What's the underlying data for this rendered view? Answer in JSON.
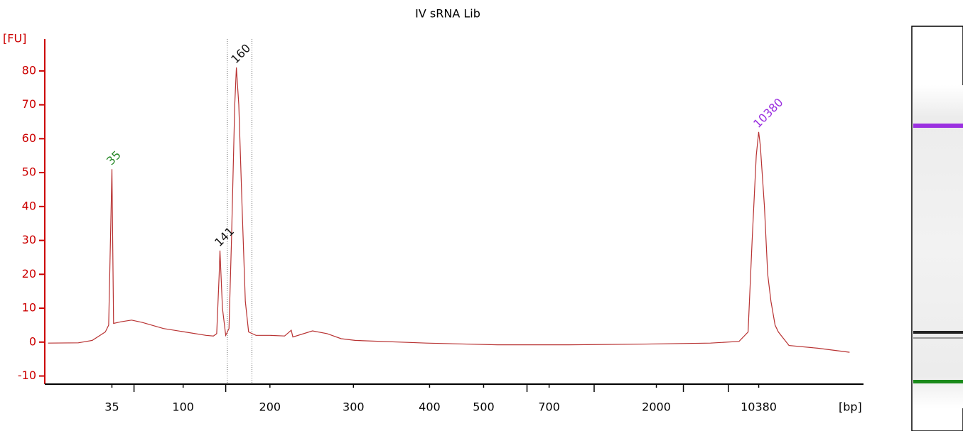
{
  "chart_data": {
    "type": "line",
    "title": "IV sRNA Lib",
    "ylabel": "[FU]",
    "xlabel": "[bp]",
    "color": "#b83232",
    "axis_color": "#cc0000",
    "xlim": [
      0,
      100
    ],
    "ylim": [
      -12.4,
      89.4
    ],
    "yticks": [
      -10,
      0,
      10,
      20,
      30,
      40,
      50,
      60,
      70,
      80
    ],
    "xticks": [
      {
        "value": 8.2,
        "label": "35"
      },
      {
        "value": 10.9,
        "label": null
      },
      {
        "value": 16.9,
        "label": "100"
      },
      {
        "value": 22.1,
        "label": null
      },
      {
        "value": 27.5,
        "label": "200"
      },
      {
        "value": 37.7,
        "label": "300"
      },
      {
        "value": 47.0,
        "label": "400"
      },
      {
        "value": 53.6,
        "label": "500"
      },
      {
        "value": 58.9,
        "label": null
      },
      {
        "value": 61.6,
        "label": "700"
      },
      {
        "value": 67.1,
        "label": null
      },
      {
        "value": 74.7,
        "label": "2000"
      },
      {
        "value": 78.0,
        "label": null
      },
      {
        "value": 83.5,
        "label": null
      },
      {
        "value": 87.2,
        "label": "10380"
      }
    ],
    "x": [
      0.4,
      4.1,
      5.8,
      7.4,
      7.8,
      8.2,
      8.4,
      9.3,
      10.6,
      11.9,
      14.5,
      17.1,
      19.7,
      20.6,
      21.0,
      21.3,
      21.4,
      21.7,
      22.1,
      22.5,
      22.8,
      23.2,
      23.4,
      23.7,
      24.1,
      24.5,
      24.9,
      25.8,
      27.5,
      29.3,
      30.1,
      30.3,
      32.7,
      34.5,
      36.2,
      37.9,
      46.6,
      55.3,
      64.0,
      72.7,
      81.3,
      84.8,
      85.9,
      86.4,
      86.9,
      87.2,
      87.4,
      87.9,
      88.3,
      88.7,
      89.2,
      89.6,
      90.9,
      94.4,
      98.3
    ],
    "values": [
      -0.3,
      -0.2,
      0.5,
      3,
      5,
      51,
      5.5,
      6,
      6.5,
      5.8,
      4,
      3,
      2,
      1.8,
      2.5,
      20,
      27,
      10,
      2,
      4,
      30,
      70,
      81,
      70,
      40,
      12,
      3,
      2,
      2,
      1.8,
      3.5,
      1.5,
      3.3,
      2.5,
      1,
      0.5,
      -0.3,
      -0.8,
      -0.8,
      -0.6,
      -0.3,
      0.2,
      3,
      30,
      55,
      62,
      58,
      40,
      20,
      12,
      5,
      3,
      -1,
      -1.8,
      -3
    ],
    "region": [
      22.3,
      25.3
    ],
    "peaks": [
      {
        "label": "35",
        "x": 8.2,
        "y": 51,
        "color": "#2a8a2a"
      },
      {
        "label": "141",
        "x": 21.4,
        "y": 27,
        "color": "#111111"
      },
      {
        "label": "160",
        "x": 23.4,
        "y": 81,
        "color": "#111111"
      },
      {
        "label": "10380",
        "x": 87.2,
        "y": 62,
        "color": "#9b30e0"
      }
    ]
  }
}
